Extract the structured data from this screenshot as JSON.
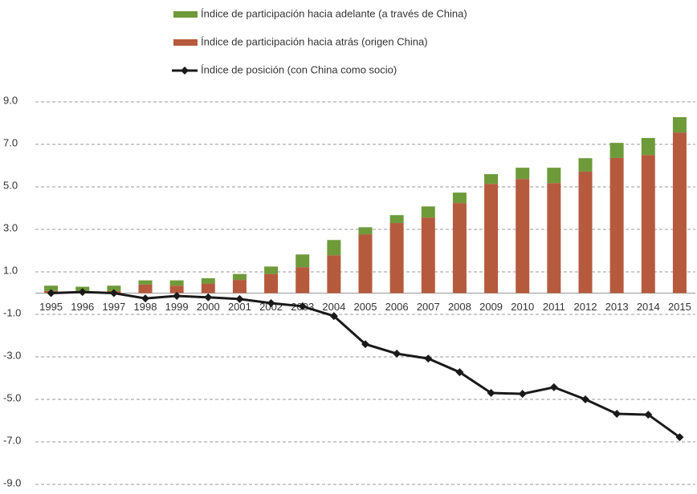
{
  "chart_data": {
    "type": "bar_line",
    "categories": [
      "1995",
      "1996",
      "1997",
      "1998",
      "1999",
      "2000",
      "2001",
      "2002",
      "2003",
      "2004",
      "2005",
      "2006",
      "2007",
      "2008",
      "2009",
      "2010",
      "2011",
      "2012",
      "2013",
      "2014",
      "2015"
    ],
    "series": [
      {
        "name": "Índice de participación hacia adelante (a través de China)",
        "type": "bar",
        "color": "#6e9a3a",
        "values": [
          0.25,
          0.2,
          0.25,
          0.2,
          0.25,
          0.25,
          0.28,
          0.35,
          0.6,
          0.72,
          0.33,
          0.37,
          0.52,
          0.49,
          0.46,
          0.53,
          0.72,
          0.63,
          0.71,
          0.8,
          0.72
        ]
      },
      {
        "name": "Índice de participación hacia atrás (origen China)",
        "type": "bar",
        "color": "#b65a3e",
        "values": [
          0.1,
          0.1,
          0.1,
          0.4,
          0.35,
          0.45,
          0.62,
          0.9,
          1.22,
          1.78,
          2.77,
          3.3,
          3.56,
          4.24,
          5.14,
          5.37,
          5.18,
          5.72,
          6.36,
          6.5,
          7.56
        ]
      },
      {
        "name": "Índice de posición (con China como socio)",
        "type": "line",
        "color": "#1a1a1a",
        "values": [
          0,
          0.05,
          0,
          -0.25,
          -0.13,
          -0.2,
          -0.28,
          -0.47,
          -0.62,
          -1.08,
          -2.4,
          -2.85,
          -3.08,
          -3.72,
          -4.7,
          -4.74,
          -4.43,
          -5.0,
          -5.68,
          -5.72,
          -6.78
        ]
      }
    ],
    "ylim": [
      -9,
      9
    ],
    "yticks": [
      {
        "value": -9,
        "label": "-9.0"
      },
      {
        "value": -7,
        "label": "-7.0"
      },
      {
        "value": -5,
        "label": "-5.0"
      },
      {
        "value": -3,
        "label": "-3.0"
      },
      {
        "value": -1,
        "label": "-1.0"
      },
      {
        "value": 1,
        "label": "1.0"
      },
      {
        "value": 3,
        "label": "3.0"
      },
      {
        "value": 5,
        "label": "5.0"
      },
      {
        "value": 7,
        "label": "7.0"
      },
      {
        "value": 9,
        "label": "9.0"
      }
    ],
    "grid": true,
    "legend": "top"
  }
}
